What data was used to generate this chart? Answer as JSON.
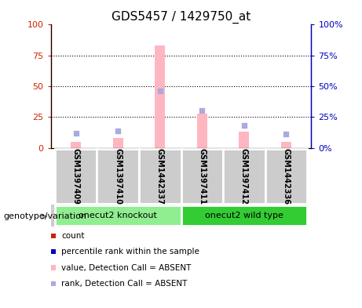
{
  "title": "GDS5457 / 1429750_at",
  "samples": [
    "GSM1397409",
    "GSM1397410",
    "GSM1442337",
    "GSM1397411",
    "GSM1397412",
    "GSM1442336"
  ],
  "groups": [
    {
      "label": "onecut2 knockout",
      "color": "#90EE90",
      "indices": [
        0,
        1,
        2
      ]
    },
    {
      "label": "onecut2 wild type",
      "color": "#33CC33",
      "indices": [
        3,
        4,
        5
      ]
    }
  ],
  "pink_bars": [
    5,
    8,
    83,
    28,
    13,
    5
  ],
  "blue_squares": [
    12,
    14,
    46,
    30,
    18,
    11
  ],
  "left_yticks": [
    0,
    25,
    50,
    75,
    100
  ],
  "right_yticks": [
    0,
    25,
    50,
    75,
    100
  ],
  "ylim": [
    0,
    100
  ],
  "left_color": "#CC2200",
  "right_color": "#0000BB",
  "pink_color": "#FFB6C1",
  "blue_sq_color": "#AAAADD",
  "red_sq_color": "#CC2200",
  "grid_ticks": [
    25,
    50,
    75
  ],
  "legend_items": [
    {
      "color": "#CC2200",
      "label": "count"
    },
    {
      "color": "#0000BB",
      "label": "percentile rank within the sample"
    },
    {
      "color": "#FFB6C1",
      "label": "value, Detection Call = ABSENT"
    },
    {
      "color": "#AAAADD",
      "label": "rank, Detection Call = ABSENT"
    }
  ],
  "genotype_label": "genotype/variation",
  "bar_width": 0.25
}
